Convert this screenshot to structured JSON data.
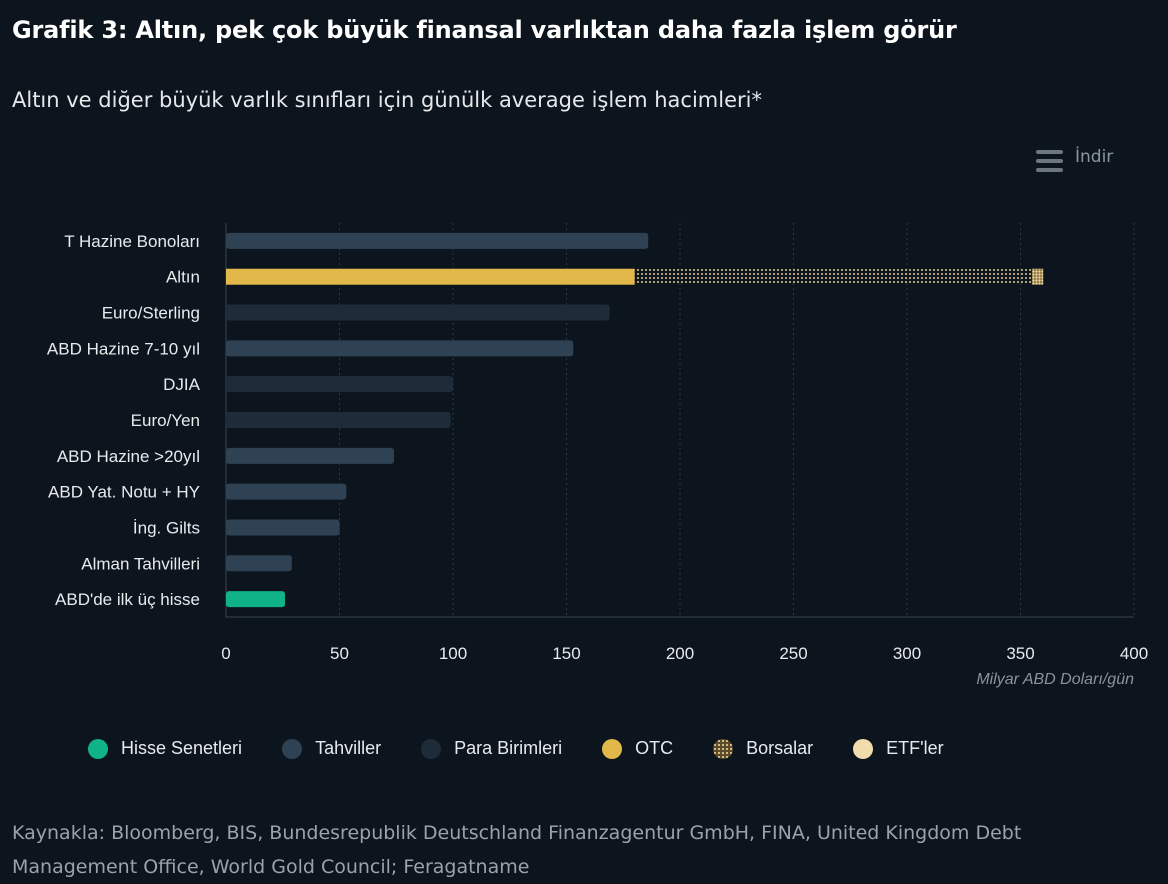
{
  "header": {
    "title": "Grafik 3:  Altın, pek çok büyük finansal varlıktan daha fazla işlem görür",
    "subtitle": "Altın ve diğer büyük varlık sınıfları için günülk average işlem hacimleri*"
  },
  "toolbar": {
    "download_label": "İndir"
  },
  "chart_data": {
    "type": "bar",
    "orientation": "horizontal",
    "stacked": true,
    "categories": [
      "T Hazine Bonoları",
      "Altın",
      "Euro/Sterling",
      "ABD Hazine 7-10 yıl",
      "DJIA",
      "Euro/Yen",
      "ABD Hazine >20yıl",
      "ABD Yat. Notu + HY",
      "İng. Gilts",
      "Alman Tahvilleri",
      "ABD'de ilk üç hisse"
    ],
    "bars": [
      {
        "category": "T Hazine Bonoları",
        "series": "Tahviller",
        "value": 186
      },
      {
        "category": "Altın",
        "series": "OTC",
        "value": 180
      },
      {
        "category": "Altın",
        "series": "Borsalar",
        "value": 175
      },
      {
        "category": "Altın",
        "series": "ETF'ler",
        "value": 5
      },
      {
        "category": "Euro/Sterling",
        "series": "Para Birimleri",
        "value": 169
      },
      {
        "category": "ABD Hazine 7-10 yıl",
        "series": "Tahviller",
        "value": 153
      },
      {
        "category": "DJIA",
        "series": "Hisse Senetleri",
        "value": 100
      },
      {
        "category": "Euro/Yen",
        "series": "Para Birimleri",
        "value": 99
      },
      {
        "category": "ABD Hazine >20yıl",
        "series": "Tahviller",
        "value": 74
      },
      {
        "category": "ABD Yat. Notu + HY",
        "series": "Tahviller",
        "value": 53
      },
      {
        "category": "İng. Gilts",
        "series": "Tahviller",
        "value": 50
      },
      {
        "category": "Alman Tahvilleri",
        "series": "Tahviller",
        "value": 29
      },
      {
        "category": "ABD'de ilk üç hisse",
        "series": "Hisse Senetleri",
        "value": 26
      }
    ],
    "series": [
      {
        "name": "Hisse Senetleri",
        "color": "#0fb387"
      },
      {
        "name": "Tahviller",
        "color": "#2f4254"
      },
      {
        "name": "Para Birimleri",
        "color": "#1e2c39"
      },
      {
        "name": "OTC",
        "color": "#e2b84a"
      },
      {
        "name": "Borsalar",
        "color": "#e7c98a"
      },
      {
        "name": "ETF'ler",
        "color": "#f3dcac"
      }
    ],
    "bar_color_overrides": [
      {
        "category": "DJIA",
        "color": "#1e2c39"
      },
      {
        "category": "ABD'de ilk üç hisse",
        "color": "#0fb387"
      }
    ],
    "xaxis": {
      "ticks": [
        0,
        50,
        100,
        150,
        200,
        250,
        300,
        350,
        400
      ],
      "tick_labels": [
        "0",
        "50",
        "100",
        "150",
        "200",
        "250",
        "300",
        "350",
        "400"
      ],
      "label": "Milyar ABD Doları/gün",
      "range": [
        0,
        400
      ]
    },
    "grid": true,
    "legend_position": "bottom"
  },
  "source": "Kaynakla: Bloomberg, BIS, Bundesrepublik Deutschland Finanzagentur GmbH, FINA, United Kingdom Debt Management Office, World Gold Council; Feragatname"
}
